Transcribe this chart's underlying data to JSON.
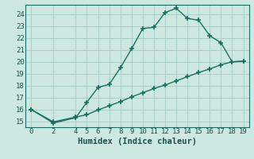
{
  "xlabel": "Humidex (Indice chaleur)",
  "bg_color": "#cce8e0",
  "grid_color": "#aacfc8",
  "line_color": "#1a7060",
  "xlim": [
    -0.5,
    19.5
  ],
  "ylim": [
    14.5,
    24.8
  ],
  "yticks": [
    15,
    16,
    17,
    18,
    19,
    20,
    21,
    22,
    23,
    24
  ],
  "xticks": [
    0,
    2,
    4,
    5,
    6,
    7,
    8,
    9,
    10,
    11,
    12,
    13,
    14,
    15,
    16,
    17,
    18,
    19
  ],
  "curve1_x": [
    0,
    2,
    4,
    5,
    6,
    7,
    8,
    9,
    10,
    11,
    12,
    13,
    14,
    15,
    16,
    17,
    18,
    19
  ],
  "curve1_y": [
    16.0,
    14.85,
    15.3,
    16.6,
    17.85,
    18.1,
    19.5,
    21.1,
    22.8,
    22.9,
    24.15,
    24.5,
    23.65,
    23.5,
    22.2,
    21.6,
    20.0,
    20.05
  ],
  "curve2_x": [
    0,
    2,
    4,
    5,
    6,
    7,
    8,
    9,
    10,
    11,
    12,
    13,
    14,
    15,
    16,
    17,
    18,
    19
  ],
  "curve2_y": [
    16.0,
    14.95,
    15.35,
    15.55,
    15.95,
    16.3,
    16.65,
    17.05,
    17.4,
    17.75,
    18.05,
    18.4,
    18.75,
    19.1,
    19.4,
    19.75,
    20.0,
    20.05
  ],
  "markersize": 4,
  "linewidth": 1.0,
  "font_size": 6.5,
  "xlabel_fontsize": 7.5
}
